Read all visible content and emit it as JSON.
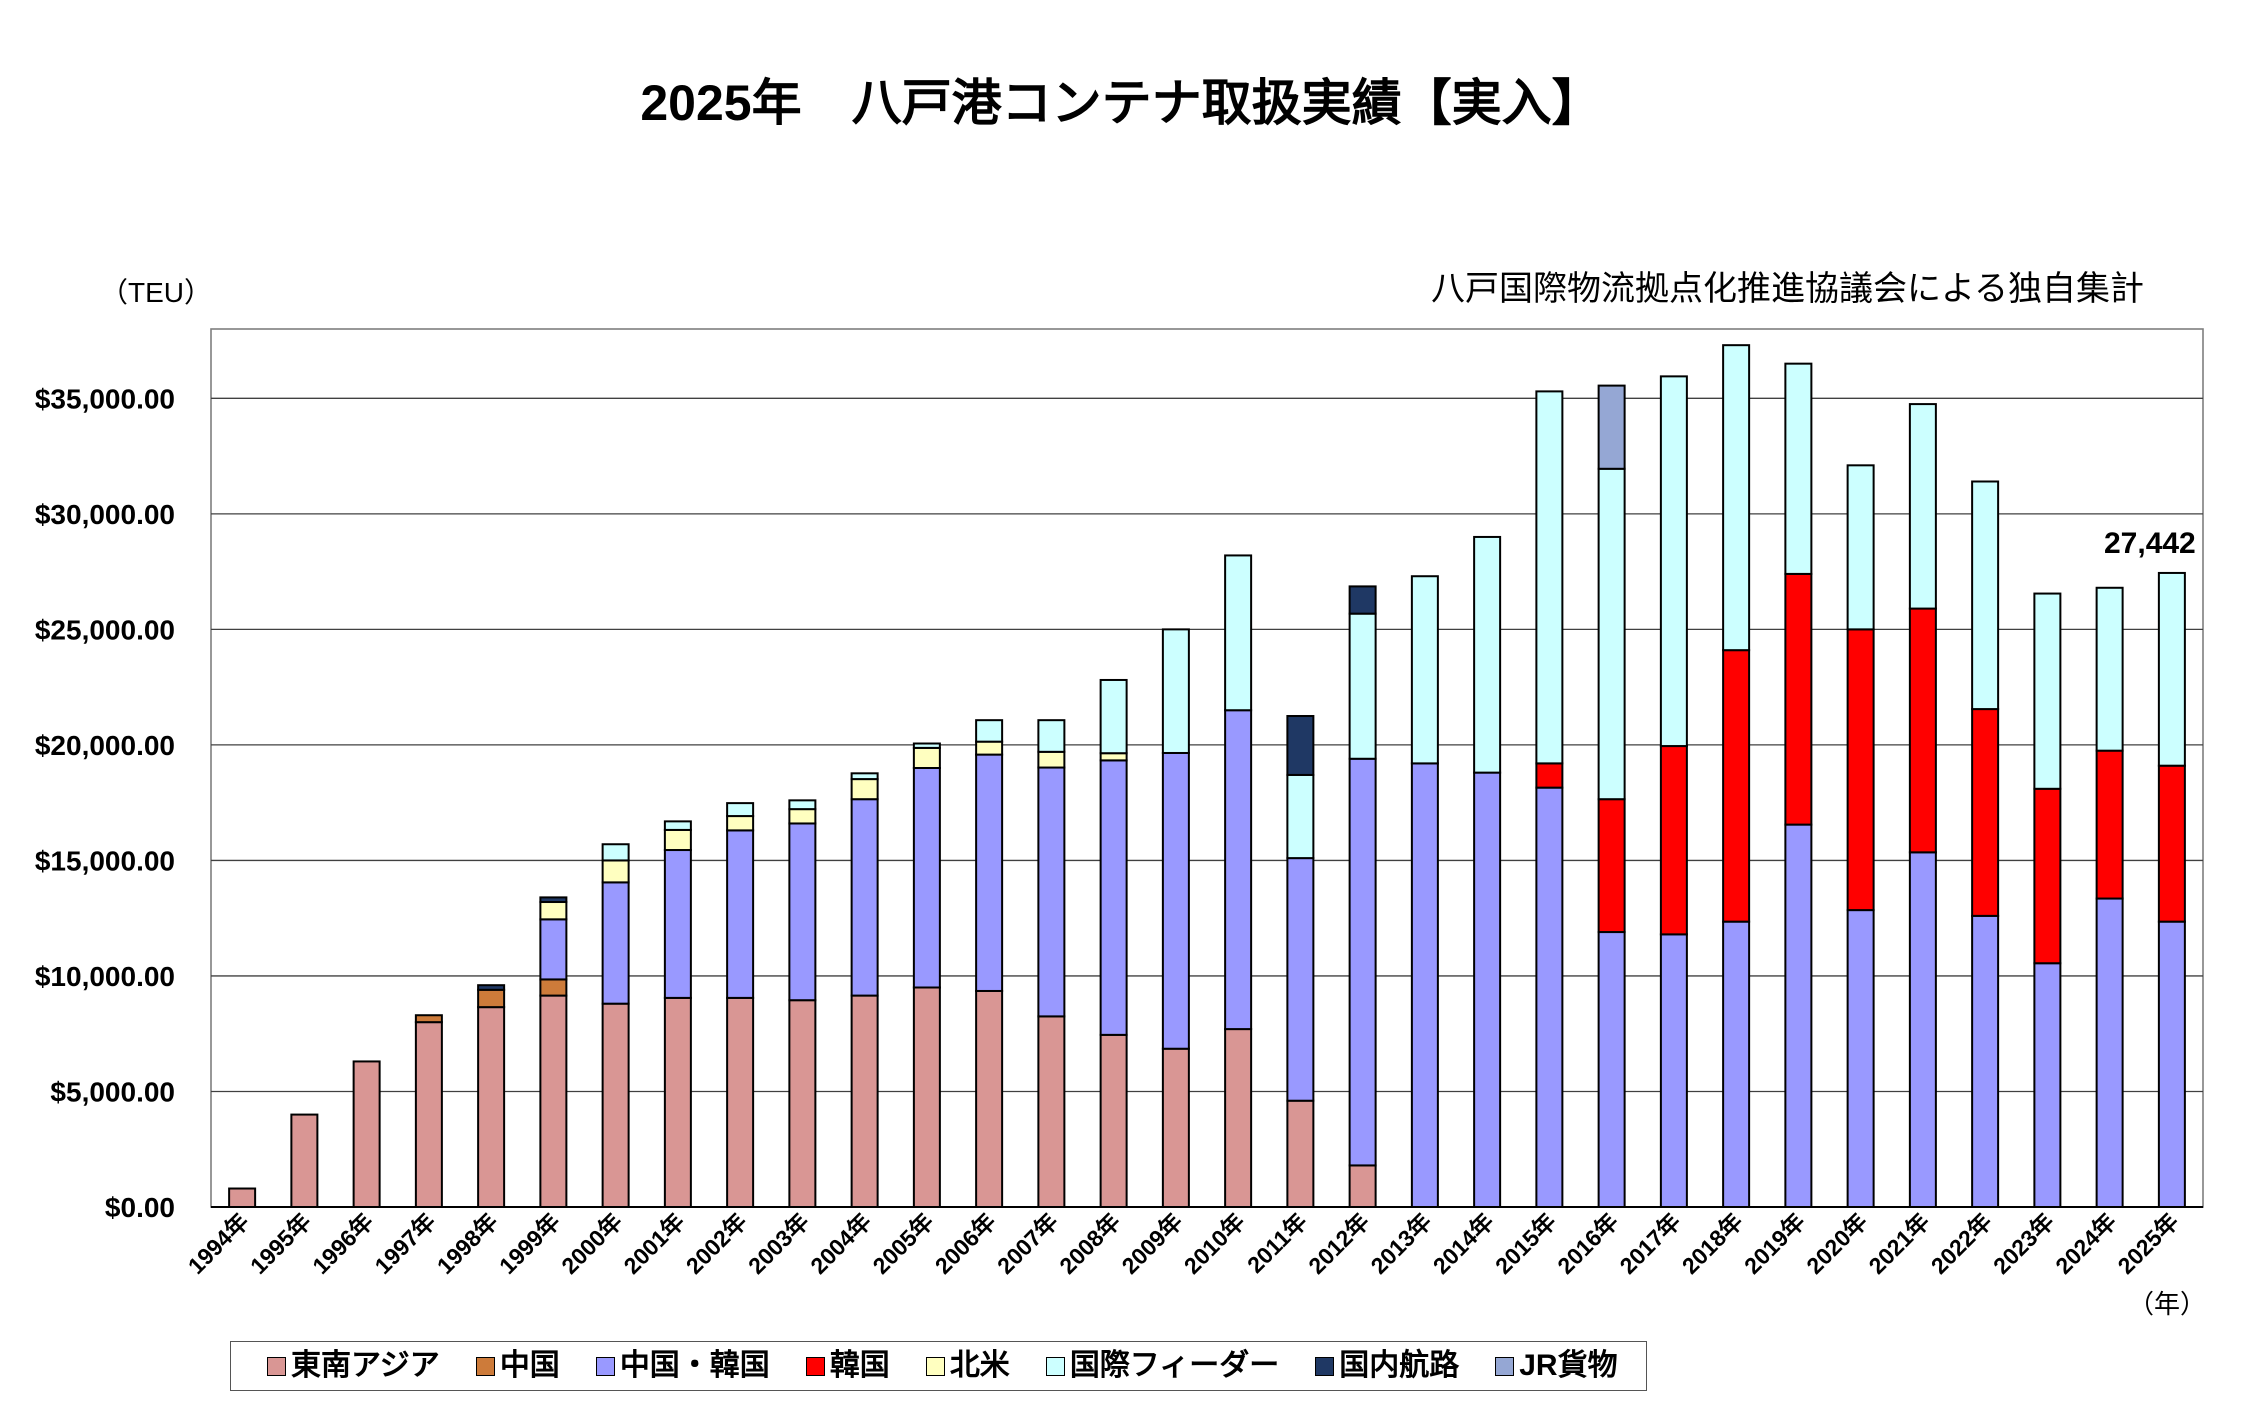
{
  "chart_data": {
    "type": "bar",
    "stacked": true,
    "title": "2025年　八戸港コンテナ取扱実績【実入】",
    "ylabel": "（TEU）",
    "xlabel": "（年）",
    "note": "八戸国際物流拠点化推進協議会による独自集計",
    "ylim": [
      0,
      38000
    ],
    "y_ticks": [
      0,
      5000,
      10000,
      15000,
      20000,
      25000,
      30000,
      35000
    ],
    "y_tick_labels": [
      "$0.00",
      "$5,000.00",
      "$10,000.00",
      "$15,000.00",
      "$20,000.00",
      "$25,000.00",
      "$30,000.00",
      "$35,000.00"
    ],
    "grid": true,
    "legend": "bottom",
    "categories": [
      "1994年",
      "1995年",
      "1996年",
      "1997年",
      "1998年",
      "1999年",
      "2000年",
      "2001年",
      "2002年",
      "2003年",
      "2004年",
      "2005年",
      "2006年",
      "2007年",
      "2008年",
      "2009年",
      "2010年",
      "2011年",
      "2012年",
      "2013年",
      "2014年",
      "2015年",
      "2016年",
      "2017年",
      "2018年",
      "2019年",
      "2020年",
      "2021年",
      "2022年",
      "2023年",
      "2024年",
      "2025年"
    ],
    "series": [
      {
        "name": "東南アジア",
        "color": "#D99694",
        "values": [
          800,
          4000,
          6300,
          8000,
          8650,
          9150,
          8800,
          9050,
          9050,
          8950,
          9150,
          9500,
          9350,
          8250,
          7450,
          6850,
          7700,
          4600,
          1800,
          0,
          0,
          0,
          0,
          0,
          0,
          0,
          0,
          0,
          0,
          0,
          0,
          0
        ]
      },
      {
        "name": "中国",
        "color": "#CD7B3A",
        "values": [
          0,
          0,
          0,
          300,
          750,
          700,
          0,
          0,
          0,
          0,
          0,
          0,
          0,
          0,
          0,
          0,
          0,
          0,
          0,
          0,
          0,
          0,
          0,
          0,
          0,
          0,
          0,
          0,
          0,
          0,
          0,
          0
        ]
      },
      {
        "name": "中国・韓国",
        "color": "#9999FF",
        "values": [
          0,
          0,
          0,
          0,
          0,
          2600,
          5250,
          6400,
          7250,
          7650,
          8500,
          9500,
          10230,
          10770,
          11880,
          12800,
          13800,
          10500,
          17600,
          19200,
          18800,
          18150,
          11900,
          11800,
          12350,
          16550,
          12850,
          15350,
          12600,
          10550,
          13350,
          12350
        ]
      },
      {
        "name": "韓国",
        "color": "#FF0000",
        "values": [
          0,
          0,
          0,
          0,
          0,
          0,
          0,
          0,
          0,
          0,
          0,
          0,
          0,
          0,
          0,
          0,
          0,
          0,
          0,
          0,
          0,
          1050,
          5750,
          8150,
          11750,
          10850,
          12150,
          10550,
          8950,
          7550,
          6400,
          6750
        ]
      },
      {
        "name": "北米",
        "color": "#FFFFC0",
        "values": [
          0,
          0,
          0,
          0,
          0,
          750,
          950,
          870,
          620,
          620,
          870,
          870,
          560,
          680,
          310,
          0,
          0,
          0,
          0,
          0,
          0,
          0,
          0,
          0,
          0,
          0,
          0,
          0,
          0,
          0,
          0,
          0
        ]
      },
      {
        "name": "国際フィーダー",
        "color": "#CCFFFF",
        "values": [
          0,
          0,
          0,
          0,
          0,
          0,
          700,
          370,
          560,
          380,
          250,
          190,
          930,
          1370,
          3170,
          5350,
          6700,
          3600,
          6280,
          8100,
          10200,
          16100,
          14300,
          16000,
          13200,
          9100,
          7100,
          8850,
          9850,
          8450,
          7050,
          8342
        ]
      },
      {
        "name": "国内航路",
        "color": "#1F3864",
        "values": [
          0,
          0,
          0,
          0,
          200,
          200,
          0,
          0,
          0,
          0,
          0,
          0,
          0,
          0,
          0,
          0,
          0,
          2550,
          1180,
          0,
          0,
          0,
          0,
          0,
          0,
          0,
          0,
          0,
          0,
          0,
          0,
          0
        ]
      },
      {
        "name": "JR貨物",
        "color": "#95A7D4",
        "values": [
          0,
          0,
          0,
          0,
          0,
          0,
          0,
          0,
          0,
          0,
          0,
          0,
          0,
          0,
          0,
          0,
          0,
          0,
          0,
          0,
          0,
          0,
          3600,
          0,
          0,
          0,
          0,
          0,
          0,
          0,
          0,
          0
        ]
      }
    ],
    "annotations": [
      {
        "category": "2025年",
        "text": "27,442"
      }
    ]
  }
}
